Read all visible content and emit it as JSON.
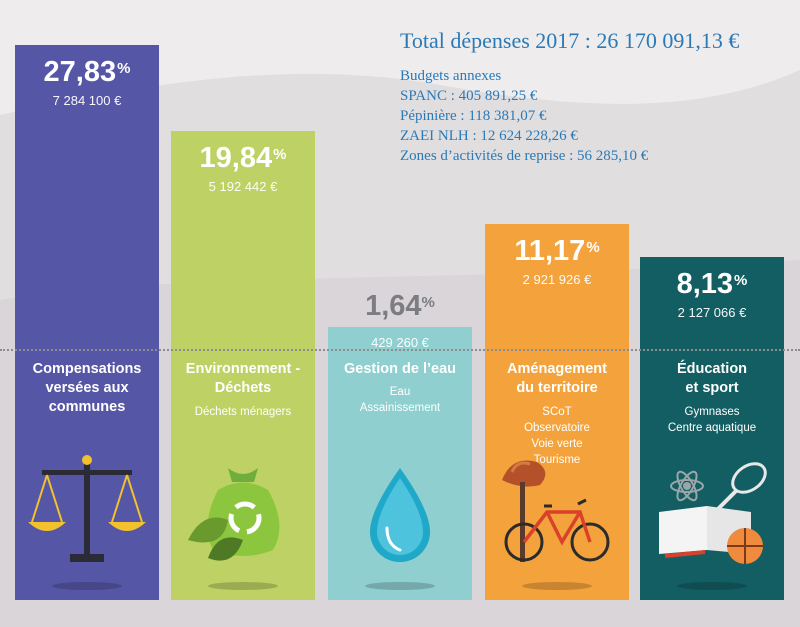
{
  "header": {
    "total": "Total dépenses 2017 : 26 170 091,13 €",
    "budgets_title": "Budgets annexes",
    "budgets": [
      "SPANC : 405 891,25 €",
      "Pépinière : 118 381,07 €",
      "ZAEI NLH : 12 624 228,26 €",
      "Zones d’activités de reprise : 56 285,10 €"
    ]
  },
  "chart_data": {
    "type": "bar",
    "title": "Total dépenses 2017 : 26 170 091,13 €",
    "ylim": [
      0,
      30
    ],
    "grid": false,
    "categories": [
      "Compensations versées aux communes",
      "Environnement - Déchets",
      "Gestion de l’eau",
      "Aménagement du territoire",
      "Éducation et sport"
    ],
    "values": [
      27.83,
      19.84,
      1.64,
      11.17,
      8.13
    ],
    "percent_labels": [
      "27,83",
      "19,84",
      "1,64",
      "11,17",
      "8,13"
    ],
    "percent_unit": "%",
    "amounts": [
      "7 284 100 €",
      "5 192 442 €",
      "429 260 €",
      "2 921 926 €",
      "2 127 066 €"
    ],
    "category_lines": [
      [
        "Compensations",
        "versées aux",
        "communes"
      ],
      [
        "Environnement -",
        "Déchets"
      ],
      [
        "Gestion de l’eau"
      ],
      [
        "Aménagement",
        "du territoire"
      ],
      [
        "Éducation",
        "et sport"
      ]
    ],
    "subitems": [
      [],
      [
        "Déchets ménagers"
      ],
      [
        "Eau",
        "Assainissement"
      ],
      [
        "SCoT",
        "Observatoire",
        "Voie verte",
        "Tourisme"
      ],
      [
        "Gymnases",
        "Centre aquatique"
      ]
    ],
    "colors": [
      "#5656a6",
      "#bdd165",
      "#8fcfcf",
      "#f4a23b",
      "#135e63"
    ],
    "icons": [
      "scales-icon",
      "recycle-bag-icon",
      "water-drop-icon",
      "bicycle-tree-icon",
      "sport-books-icon"
    ]
  }
}
